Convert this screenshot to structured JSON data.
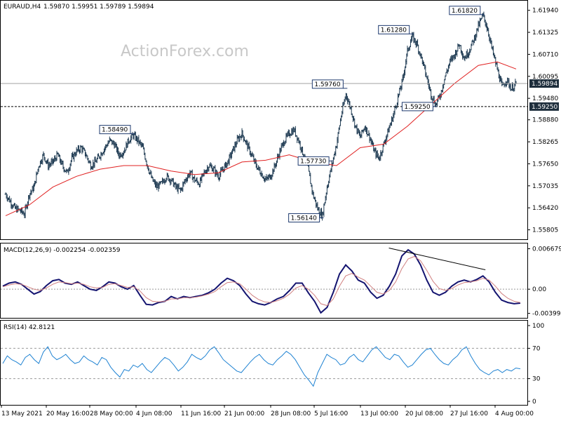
{
  "header": {
    "symbol": "EURAUD,H4",
    "ohlc": "1.59870 1.59951 1.59789 1.59894"
  },
  "watermark": "ActionForex.com",
  "chart_data": [
    {
      "type": "candlestick",
      "title": "EURAUD,H4 1.59870 1.59951 1.59789 1.59894",
      "ylim": [
        1.556,
        1.6215
      ],
      "y_ticks": [
        "1.61940",
        "1.61325",
        "1.60710",
        "1.60095",
        "1.59480",
        "1.58880",
        "1.58265",
        "1.57650",
        "1.57035",
        "1.56420",
        "1.55805"
      ],
      "y_tick_values": [
        1.6194,
        1.61325,
        1.6071,
        1.60095,
        1.5948,
        1.5888,
        1.58265,
        1.5765,
        1.57035,
        1.5642,
        1.55805
      ],
      "x_ticks": [
        "13 May 2021",
        "20 May 16:00",
        "28 May 00:00",
        "4 Jun 08:00",
        "11 Jun 16:00",
        "21 Jun 00:00",
        "28 Jun 08:00",
        "5 Jul 16:00",
        "13 Jul 00:00",
        "20 Jul 08:00",
        "27 Jul 16:00",
        "4 Aug 00:00"
      ],
      "current_price": "1.59894",
      "current_price_value": 1.59894,
      "support_level": "1.59250",
      "support_level_value": 1.5925,
      "annotations": [
        {
          "label": "1.58490",
          "value": 1.5849
        },
        {
          "label": "1.56140",
          "value": 1.5614
        },
        {
          "label": "1.59760",
          "value": 1.5976
        },
        {
          "label": "1.57730",
          "value": 1.5773
        },
        {
          "label": "1.61280",
          "value": 1.6128
        },
        {
          "label": "1.59250",
          "value": 1.5925
        },
        {
          "label": "1.61820",
          "value": 1.6182
        }
      ],
      "price_path": [
        [
          0,
          1.568
        ],
        [
          1,
          1.566
        ],
        [
          2,
          1.564
        ],
        [
          3,
          1.5635
        ],
        [
          4,
          1.5625
        ],
        [
          5,
          1.568
        ],
        [
          6,
          1.57
        ],
        [
          7,
          1.576
        ],
        [
          8,
          1.579
        ],
        [
          9,
          1.576
        ],
        [
          10,
          1.577
        ],
        [
          11,
          1.579
        ],
        [
          12,
          1.576
        ],
        [
          13,
          1.574
        ],
        [
          14,
          1.578
        ],
        [
          15,
          1.58
        ],
        [
          16,
          1.581
        ],
        [
          17,
          1.579
        ],
        [
          18,
          1.576
        ],
        [
          19,
          1.577
        ],
        [
          20,
          1.579
        ],
        [
          21,
          1.581
        ],
        [
          22,
          1.583
        ],
        [
          23,
          1.582
        ],
        [
          24,
          1.579
        ],
        [
          25,
          1.58
        ],
        [
          26,
          1.583
        ],
        [
          27,
          1.5845
        ],
        [
          28,
          1.583
        ],
        [
          29,
          1.581
        ],
        [
          30,
          1.576
        ],
        [
          31,
          1.572
        ],
        [
          32,
          1.57
        ],
        [
          33,
          1.571
        ],
        [
          34,
          1.573
        ],
        [
          35,
          1.572
        ],
        [
          36,
          1.57
        ],
        [
          37,
          1.569
        ],
        [
          38,
          1.572
        ],
        [
          39,
          1.574
        ],
        [
          40,
          1.572
        ],
        [
          41,
          1.571
        ],
        [
          42,
          1.574
        ],
        [
          43,
          1.576
        ],
        [
          44,
          1.575
        ],
        [
          45,
          1.573
        ],
        [
          46,
          1.575
        ],
        [
          47,
          1.577
        ],
        [
          48,
          1.58
        ],
        [
          49,
          1.583
        ],
        [
          50,
          1.585
        ],
        [
          51,
          1.582
        ],
        [
          52,
          1.579
        ],
        [
          53,
          1.576
        ],
        [
          54,
          1.574
        ],
        [
          55,
          1.572
        ],
        [
          56,
          1.573
        ],
        [
          57,
          1.576
        ],
        [
          58,
          1.58
        ],
        [
          59,
          1.583
        ],
        [
          60,
          1.585
        ],
        [
          61,
          1.586
        ],
        [
          62,
          1.583
        ],
        [
          63,
          1.579
        ],
        [
          64,
          1.575
        ],
        [
          65,
          1.568
        ],
        [
          66,
          1.564
        ],
        [
          67,
          1.562
        ],
        [
          68,
          1.57
        ],
        [
          69,
          1.576
        ],
        [
          70,
          1.582
        ],
        [
          71,
          1.59
        ],
        [
          72,
          1.596
        ],
        [
          73,
          1.592
        ],
        [
          74,
          1.587
        ],
        [
          75,
          1.584
        ],
        [
          76,
          1.587
        ],
        [
          77,
          1.584
        ],
        [
          78,
          1.58
        ],
        [
          79,
          1.578
        ],
        [
          80,
          1.582
        ],
        [
          81,
          1.586
        ],
        [
          82,
          1.59
        ],
        [
          83,
          1.595
        ],
        [
          84,
          1.6
        ],
        [
          85,
          1.608
        ],
        [
          86,
          1.612
        ],
        [
          87,
          1.61
        ],
        [
          88,
          1.606
        ],
        [
          89,
          1.601
        ],
        [
          90,
          1.596
        ],
        [
          91,
          1.593
        ],
        [
          92,
          1.596
        ],
        [
          93,
          1.601
        ],
        [
          94,
          1.605
        ],
        [
          95,
          1.607
        ],
        [
          96,
          1.61
        ],
        [
          97,
          1.606
        ],
        [
          98,
          1.608
        ],
        [
          99,
          1.611
        ],
        [
          100,
          1.615
        ],
        [
          101,
          1.618
        ],
        [
          102,
          1.614
        ],
        [
          103,
          1.608
        ],
        [
          104,
          1.603
        ],
        [
          105,
          1.598
        ],
        [
          106,
          1.6
        ],
        [
          107,
          1.5975
        ],
        [
          108,
          1.5989
        ]
      ],
      "ma_path": [
        [
          0,
          1.562
        ],
        [
          5,
          1.565
        ],
        [
          10,
          1.57
        ],
        [
          15,
          1.573
        ],
        [
          20,
          1.575
        ],
        [
          25,
          1.576
        ],
        [
          30,
          1.576
        ],
        [
          35,
          1.5745
        ],
        [
          40,
          1.5735
        ],
        [
          45,
          1.574
        ],
        [
          50,
          1.577
        ],
        [
          55,
          1.5775
        ],
        [
          60,
          1.579
        ],
        [
          65,
          1.577
        ],
        [
          70,
          1.576
        ],
        [
          75,
          1.581
        ],
        [
          80,
          1.582
        ],
        [
          85,
          1.587
        ],
        [
          90,
          1.593
        ],
        [
          95,
          1.599
        ],
        [
          100,
          1.604
        ],
        [
          104,
          1.605
        ],
        [
          108,
          1.603
        ]
      ]
    },
    {
      "type": "line",
      "title": "MACD(12,26,9) -0.002254 -0.002359",
      "ylim": [
        -0.0045,
        0.0072
      ],
      "y_ticks": [
        "0.006679",
        "0.00",
        "-0.003994"
      ],
      "y_tick_values": [
        0.006679,
        0.0,
        -0.003994
      ],
      "series": [
        {
          "values": [
            0.0005,
            0.001,
            0.0012,
            0.0008,
            0.0,
            -0.0008,
            -0.0004,
            0.0006,
            0.0014,
            0.0016,
            0.001,
            0.0008,
            0.0012,
            0.0006,
            0.0,
            -0.0002,
            0.0004,
            0.0012,
            0.001,
            0.0004,
            0.0,
            0.0006,
            -0.001,
            -0.0025,
            -0.0026,
            -0.0022,
            -0.002,
            -0.0012,
            -0.0016,
            -0.0012,
            -0.0014,
            -0.0012,
            -0.001,
            -0.0006,
            0.0,
            0.001,
            0.0018,
            0.0014,
            0.0006,
            -0.0008,
            -0.002,
            -0.0024,
            -0.0026,
            -0.0022,
            -0.0016,
            -0.0012,
            -0.0002,
            0.001,
            0.001,
            -0.0006,
            -0.002,
            -0.0039,
            -0.003,
            -0.0005,
            0.0025,
            0.004,
            0.003,
            0.0015,
            0.001,
            -0.0005,
            -0.0015,
            -0.001,
            0.0005,
            0.0025,
            0.0055,
            0.0065,
            0.0058,
            0.004,
            0.0015,
            -0.0005,
            -0.001,
            -0.0005,
            0.0005,
            0.0012,
            0.0015,
            0.0012,
            0.0016,
            0.0022,
            0.0012,
            -0.0005,
            -0.0018,
            -0.0022,
            -0.0024,
            -0.0023
          ]
        },
        {
          "values": [
            0.0004,
            0.0007,
            0.0009,
            0.0008,
            0.0004,
            0.0,
            -0.0002,
            0.0002,
            0.0008,
            0.0012,
            0.0011,
            0.0009,
            0.001,
            0.0008,
            0.0004,
            0.0002,
            0.0003,
            0.0008,
            0.0009,
            0.0006,
            0.0003,
            0.0004,
            -0.0003,
            -0.0014,
            -0.002,
            -0.0021,
            -0.002,
            -0.0016,
            -0.0016,
            -0.0014,
            -0.0014,
            -0.0013,
            -0.0011,
            -0.0008,
            -0.0004,
            0.0004,
            0.0011,
            0.0012,
            0.0009,
            0.0,
            -0.001,
            -0.0017,
            -0.0021,
            -0.0022,
            -0.0019,
            -0.0015,
            -0.0008,
            0.0002,
            0.0006,
            0.0,
            -0.001,
            -0.0024,
            -0.0027,
            -0.0016,
            0.0005,
            0.0022,
            0.0026,
            0.002,
            0.0015,
            0.0005,
            -0.0005,
            -0.0008,
            -0.0002,
            0.0012,
            0.0034,
            0.005,
            0.0054,
            0.0047,
            0.0031,
            0.0013,
            0.0001,
            -0.0002,
            0.0001,
            0.0007,
            0.0011,
            0.0012,
            0.0014,
            0.0018,
            0.0015,
            0.0005,
            -0.0007,
            -0.0015,
            -0.002,
            -0.0022
          ]
        }
      ],
      "trend_line": [
        [
          0.74,
          0.0068
        ],
        [
          0.925,
          0.0032
        ]
      ]
    },
    {
      "type": "line",
      "title": "RSI(14) 42.8121",
      "ylim": [
        0,
        100
      ],
      "y_ticks": [
        "100",
        "70",
        "30",
        "0"
      ],
      "y_tick_values": [
        100,
        70,
        30,
        0
      ],
      "levels": [
        70,
        30
      ],
      "series": [
        {
          "values": [
            50,
            60,
            55,
            52,
            48,
            58,
            62,
            55,
            50,
            65,
            72,
            60,
            55,
            58,
            62,
            55,
            50,
            52,
            60,
            55,
            52,
            48,
            58,
            55,
            45,
            38,
            32,
            42,
            40,
            48,
            45,
            50,
            42,
            38,
            45,
            52,
            58,
            55,
            48,
            40,
            45,
            52,
            62,
            58,
            55,
            60,
            68,
            72,
            64,
            55,
            50,
            45,
            40,
            38,
            45,
            52,
            58,
            62,
            55,
            50,
            48,
            55,
            60,
            66,
            62,
            55,
            45,
            35,
            28,
            20,
            38,
            50,
            62,
            58,
            55,
            48,
            50,
            58,
            62,
            55,
            52,
            60,
            68,
            72,
            65,
            58,
            55,
            62,
            60,
            52,
            45,
            48,
            55,
            62,
            68,
            70,
            62,
            55,
            50,
            48,
            55,
            60,
            68,
            72,
            60,
            50,
            42,
            38,
            35,
            40,
            42,
            38,
            42,
            40,
            44,
            43
          ]
        }
      ]
    }
  ]
}
